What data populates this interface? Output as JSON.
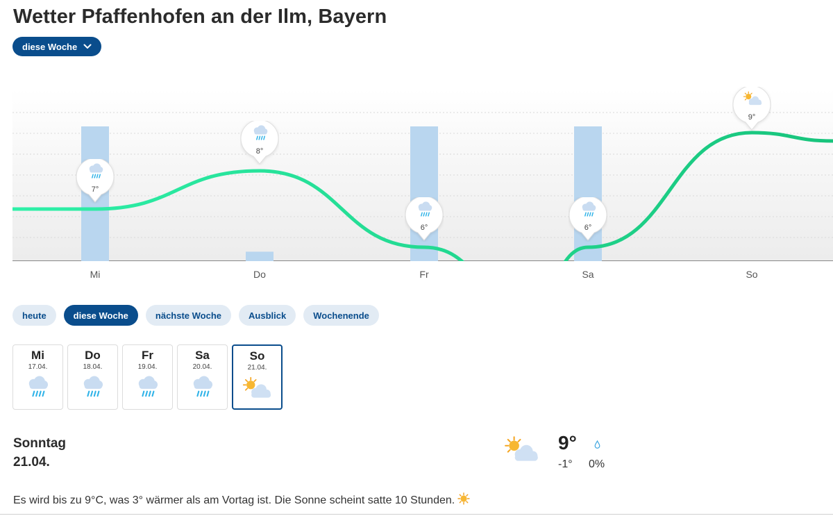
{
  "page": {
    "title": "Wetter Pfaffenhofen an der Ilm, Bayern"
  },
  "period_dropdown": {
    "label": "diese Woche",
    "icon": "chevron-down-icon"
  },
  "chart_data": {
    "type": "line",
    "categories": [
      "Mi",
      "Do",
      "Fr",
      "Sa",
      "So"
    ],
    "series": [
      {
        "values": [
          7,
          8,
          6,
          6,
          9
        ]
      }
    ],
    "bars": [
      1.0,
      0.07,
      1.0,
      1.0,
      0
    ],
    "pins": [
      {
        "day": "Mi",
        "temp": "7°",
        "icon": "rain-cloud-icon"
      },
      {
        "day": "Do",
        "temp": "8°",
        "icon": "rain-cloud-icon"
      },
      {
        "day": "Fr",
        "temp": "6°",
        "icon": "rain-cloud-icon"
      },
      {
        "day": "Sa",
        "temp": "6°",
        "icon": "rain-cloud-icon"
      },
      {
        "day": "So",
        "temp": "9°",
        "icon": "sun-cloud-icon"
      }
    ],
    "colors": {
      "line_start": "#2ef0a8",
      "line_end": "#18c47c",
      "bar": "#b9d6ef"
    },
    "grid": true
  },
  "tabs": [
    {
      "label": "heute",
      "active": false
    },
    {
      "label": "diese Woche",
      "active": true
    },
    {
      "label": "nächste Woche",
      "active": false
    },
    {
      "label": "Ausblick",
      "active": false
    },
    {
      "label": "Wochenende",
      "active": false
    }
  ],
  "days": [
    {
      "name": "Mi",
      "date": "17.04.",
      "icon": "rain-cloud-icon",
      "selected": false
    },
    {
      "name": "Do",
      "date": "18.04.",
      "icon": "rain-cloud-icon",
      "selected": false
    },
    {
      "name": "Fr",
      "date": "19.04.",
      "icon": "rain-cloud-icon",
      "selected": false
    },
    {
      "name": "Sa",
      "date": "20.04.",
      "icon": "rain-cloud-icon",
      "selected": false
    },
    {
      "name": "So",
      "date": "21.04.",
      "icon": "sun-cloud-icon",
      "selected": true
    }
  ],
  "detail": {
    "day_name": "Sonntag",
    "date": "21.04.",
    "icon": "sun-cloud-icon",
    "max_temp": "9°",
    "min_temp": "-1°",
    "precip_icon": "raindrop-icon",
    "precip": "0%"
  },
  "summary": {
    "text": "Es wird bis zu 9°C, was 3° wärmer als am Vortag ist. Die Sonne scheint satte 10 Stunden.",
    "icon": "sun-icon"
  },
  "colors": {
    "accent": "#0a4d8c",
    "tab_bg": "#e2ebf4",
    "rain": "#3bb8e6",
    "sun": "#f7c01e",
    "cloud": "#cfe0f3"
  }
}
